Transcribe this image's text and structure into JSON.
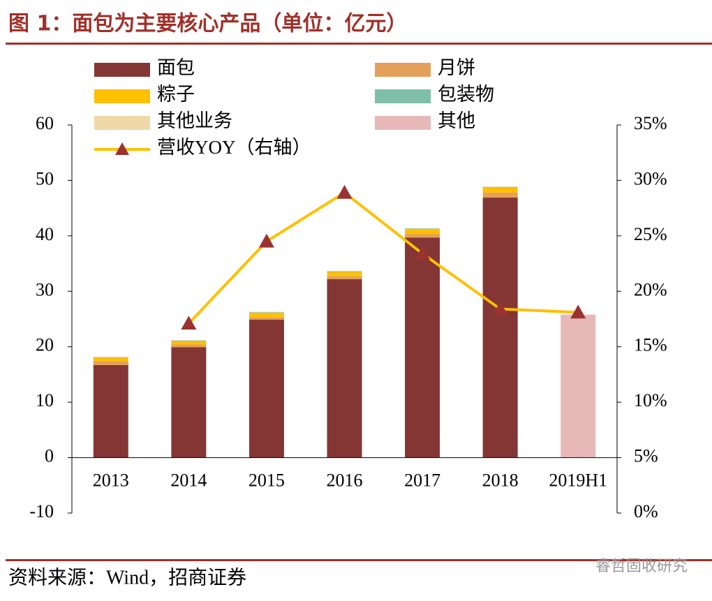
{
  "chart_data": {
    "type": "bar",
    "title": "图 1：面包为主要核心产品（单位：亿元）",
    "source": "资料来源：Wind，招商证券",
    "watermark": "睿哲固收研究",
    "categories": [
      "2013",
      "2014",
      "2015",
      "2016",
      "2017",
      "2018",
      "2019H1"
    ],
    "ylim": [
      -10,
      60
    ],
    "yticks": [
      -10,
      0,
      10,
      20,
      30,
      40,
      50,
      60
    ],
    "y2lim": [
      0,
      35
    ],
    "y2ticks": [
      {
        "value": 0,
        "label": "0%"
      },
      {
        "value": 5,
        "label": "5%"
      },
      {
        "value": 10,
        "label": "10%"
      },
      {
        "value": 15,
        "label": "15%"
      },
      {
        "value": 20,
        "label": "20%"
      },
      {
        "value": 25,
        "label": "25%"
      },
      {
        "value": 30,
        "label": "30%"
      },
      {
        "value": 35,
        "label": "35%"
      }
    ],
    "series": [
      {
        "name": "面包",
        "color": "#843634",
        "values": [
          16.7,
          19.9,
          24.9,
          32.2,
          39.7,
          46.9,
          null
        ]
      },
      {
        "name": "月饼",
        "color": "#e4a05a",
        "values": [
          0.7,
          0.5,
          0.4,
          0.5,
          0.6,
          0.9,
          null
        ]
      },
      {
        "name": "粽子",
        "color": "#ffc000",
        "values": [
          0.6,
          0.6,
          0.8,
          0.8,
          0.9,
          0.9,
          null
        ]
      },
      {
        "name": "包装物",
        "color": "#7fbfaa",
        "values": [
          0.1,
          0.1,
          0.1,
          0.1,
          0.1,
          0.1,
          null
        ]
      },
      {
        "name": "其他业务",
        "color": "#f0d9a8",
        "values": [
          0.1,
          0.1,
          0.1,
          0.1,
          0.1,
          0.1,
          null
        ]
      },
      {
        "name": "其他",
        "color": "#e6b9b8",
        "values": [
          null,
          null,
          null,
          null,
          null,
          null,
          25.8
        ]
      },
      {
        "name": "营收YOY（右轴）",
        "color": "#ffc000",
        "marker_color": "#9b3230",
        "axis": "y2",
        "values": [
          null,
          17.1,
          24.5,
          28.9,
          23.4,
          18.4,
          18.1
        ]
      }
    ]
  }
}
